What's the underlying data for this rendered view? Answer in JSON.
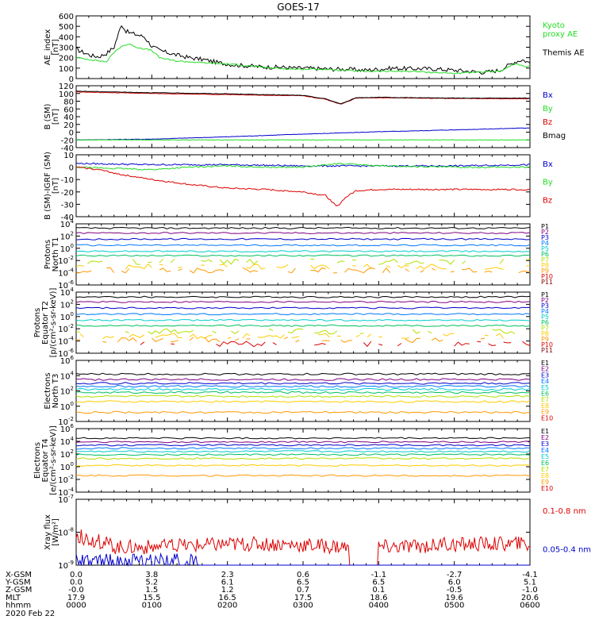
{
  "title": "GOES-17",
  "date": "2020 Feb 22",
  "colors": {
    "black": "#000000",
    "green": "#22dd22",
    "blue": "#0000cc",
    "red": "#dd0000",
    "darkred": "#800000",
    "cyan": "#00cccc",
    "yellow": "#e8c000",
    "orange": "#ff9900"
  },
  "chart_data": [
    {
      "id": "ae",
      "type": "line",
      "ylabel": [
        "AE_index",
        "[nT]"
      ],
      "ylim": [
        0,
        600
      ],
      "yticks": [
        0,
        100,
        200,
        300,
        400,
        500,
        600
      ],
      "xlim": [
        0,
        6
      ],
      "series": [
        {
          "name": "Themis AE",
          "color": "#000000",
          "x": [
            0,
            0.1,
            0.2,
            0.3,
            0.4,
            0.5,
            0.6,
            0.65,
            0.7,
            0.8,
            0.9,
            1.0,
            1.1,
            1.3,
            1.5,
            1.7,
            1.9,
            2.1,
            2.3,
            2.5,
            2.7,
            2.9,
            3.0,
            3.2,
            3.4,
            3.6,
            3.8,
            4.0,
            4.2,
            4.4,
            4.6,
            4.8,
            5.0,
            5.2,
            5.4,
            5.6,
            5.8,
            5.9,
            6.0
          ],
          "y": [
            280,
            250,
            220,
            210,
            240,
            300,
            520,
            460,
            440,
            420,
            400,
            310,
            270,
            230,
            200,
            180,
            150,
            130,
            120,
            110,
            110,
            100,
            100,
            95,
            90,
            90,
            80,
            90,
            100,
            95,
            95,
            90,
            80,
            70,
            60,
            80,
            160,
            180,
            150
          ]
        },
        {
          "name": "Kyoto proxy AE",
          "color": "#22dd22",
          "x": [
            0,
            0.2,
            0.4,
            0.5,
            0.6,
            0.7,
            0.8,
            1.0,
            1.1,
            1.3,
            1.5,
            1.7,
            2.0,
            2.3,
            2.6,
            2.9,
            3.2,
            3.5,
            3.8,
            4.1,
            4.4,
            4.7,
            5.0,
            5.3,
            5.6,
            5.8,
            6.0
          ],
          "y": [
            200,
            180,
            160,
            250,
            310,
            330,
            300,
            270,
            200,
            170,
            160,
            150,
            140,
            120,
            100,
            90,
            90,
            80,
            70,
            70,
            70,
            60,
            50,
            60,
            70,
            140,
            110
          ]
        }
      ],
      "legend": [
        "Kyoto proxy AE",
        "Themis AE"
      ]
    },
    {
      "id": "bsm",
      "type": "line",
      "ylabel": [
        "B (SM)",
        "[nT]"
      ],
      "ylim": [
        -40,
        120
      ],
      "yticks": [
        -40,
        -20,
        0,
        20,
        40,
        60,
        80,
        100,
        120
      ],
      "xlim": [
        0,
        6
      ],
      "series": [
        {
          "name": "Bx",
          "color": "#0000cc",
          "x": [
            0,
            1,
            2,
            3,
            4,
            5,
            6
          ],
          "y": [
            -20,
            -18,
            -12,
            -5,
            1,
            6,
            11
          ]
        },
        {
          "name": "By",
          "color": "#22dd22",
          "x": [
            0,
            1,
            2,
            3,
            4,
            5,
            6
          ],
          "y": [
            -20,
            -20,
            -20,
            -20,
            -20,
            -20,
            -20
          ]
        },
        {
          "name": "Bz",
          "color": "#dd0000",
          "x": [
            0,
            1,
            2,
            3,
            3.3,
            3.5,
            3.7,
            4,
            5,
            6
          ],
          "y": [
            104,
            100,
            97,
            94,
            85,
            72,
            88,
            89,
            87,
            86
          ]
        },
        {
          "name": "Bmag",
          "color": "#000000",
          "x": [
            0,
            1,
            2,
            3,
            3.3,
            3.5,
            3.7,
            4,
            5,
            6
          ],
          "y": [
            106,
            102,
            99,
            95,
            86,
            73,
            89,
            90,
            88,
            88
          ]
        }
      ],
      "legend": [
        "Bx",
        "By",
        "Bz",
        "Bmag"
      ]
    },
    {
      "id": "bigrf",
      "type": "line",
      "ylabel": [
        "B (SM)-IGRF (SM)",
        "[nT]"
      ],
      "ylim": [
        -40,
        10
      ],
      "yticks": [
        -40,
        -30,
        -20,
        -10,
        0,
        10
      ],
      "xlim": [
        0,
        6
      ],
      "series": [
        {
          "name": "Bx",
          "color": "#0000cc",
          "x": [
            0,
            1,
            2,
            3,
            4,
            5,
            6
          ],
          "y": [
            3,
            2,
            2,
            1,
            1,
            1,
            2
          ]
        },
        {
          "name": "By",
          "color": "#22dd22",
          "x": [
            0,
            0.5,
            1,
            1.5,
            2,
            2.5,
            3,
            3.5,
            4,
            5,
            6
          ],
          "y": [
            0,
            -1,
            -2,
            0,
            1,
            0,
            0,
            3,
            1,
            0,
            0
          ]
        },
        {
          "name": "Bz",
          "color": "#dd0000",
          "x": [
            0,
            0.3,
            0.6,
            1,
            1.5,
            2,
            2.5,
            3,
            3.3,
            3.45,
            3.55,
            3.7,
            4,
            4.5,
            5,
            5.5,
            6
          ],
          "y": [
            0,
            -2,
            -6,
            -10,
            -14,
            -17,
            -18,
            -20,
            -23,
            -32,
            -25,
            -19,
            -18,
            -18,
            -18,
            -18,
            -18
          ]
        }
      ],
      "legend": [
        "Bx",
        "By",
        "Bz"
      ]
    },
    {
      "id": "pn",
      "type": "line",
      "scale": "log",
      "ylabel": [
        "Protons",
        "North T1"
      ],
      "ylim_exp": [
        -6,
        4
      ],
      "yticks_exp": [
        -6,
        -4,
        -2,
        0,
        2,
        4
      ],
      "xlim": [
        0,
        6
      ],
      "channels": [
        "P1",
        "P2",
        "P3",
        "P4",
        "P5",
        "P6",
        "P7",
        "P8",
        "P9",
        "P10",
        "P11"
      ],
      "levels_exp": [
        3.3,
        2.5,
        1.5,
        0.5,
        -0.5,
        -1.2,
        -2.2,
        -3.0,
        -3.6,
        null,
        null
      ]
    },
    {
      "id": "pe",
      "type": "line",
      "scale": "log",
      "ylabel": [
        "Protons",
        "Equator T2",
        "[p/(cm²-s-sr-keV)]"
      ],
      "ylim_exp": [
        -6,
        4
      ],
      "yticks_exp": [
        -6,
        -4,
        -2,
        0,
        2,
        4
      ],
      "xlim": [
        0,
        6
      ],
      "channels": [
        "P1",
        "P2",
        "P3",
        "P4",
        "P5",
        "P6",
        "P7",
        "P8",
        "P9",
        "P10",
        "P11"
      ],
      "levels_exp": [
        3.2,
        2.4,
        1.4,
        0.4,
        -0.6,
        -1.5,
        -2.4,
        -3.2,
        -3.8,
        -4.5,
        null
      ]
    },
    {
      "id": "en",
      "type": "line",
      "scale": "log",
      "ylabel": [
        "Electrons",
        "North T3"
      ],
      "ylim_exp": [
        -2,
        6
      ],
      "yticks_exp": [
        -2,
        0,
        2,
        4,
        6
      ],
      "xlim": [
        0,
        6
      ],
      "channels": [
        "E1",
        "E2",
        "E3",
        "E4",
        "E5",
        "E6",
        "E7",
        "E8",
        "E9",
        "E10"
      ],
      "levels_exp": [
        4.2,
        3.5,
        3.0,
        2.6,
        2.2,
        1.8,
        1.3,
        0.6,
        -0.8,
        null
      ]
    },
    {
      "id": "ee",
      "type": "line",
      "scale": "log",
      "ylabel": [
        "Electrons",
        "Equator T4",
        "[e/(cm²-s-sr-keV)]"
      ],
      "ylim_exp": [
        -4,
        6
      ],
      "yticks_exp": [
        -4,
        -2,
        0,
        2,
        4,
        6
      ],
      "xlim": [
        0,
        6
      ],
      "channels": [
        "E1",
        "E2",
        "E3",
        "E4",
        "E5",
        "E6",
        "E7",
        "E8",
        "E9",
        "E10"
      ],
      "levels_exp": [
        4.5,
        3.9,
        3.4,
        2.9,
        2.4,
        1.9,
        1.3,
        0.2,
        -1.4,
        null
      ]
    },
    {
      "id": "xray",
      "type": "line",
      "scale": "log",
      "ylabel": [
        "Xray flux",
        "[W/m²]"
      ],
      "ylim_exp": [
        -9,
        -7
      ],
      "yticks_exp": [
        -9,
        -8,
        -7
      ],
      "xlim": [
        0,
        6
      ],
      "series": [
        {
          "name": "0.1-0.8 nm",
          "color": "#dd0000",
          "base_exp": -8.45
        },
        {
          "name": "0.05-0.4 nm",
          "color": "#0000cc",
          "base_exp": -8.95
        }
      ],
      "legend": [
        "0.1-0.8 nm",
        "0.05-0.4 nm"
      ]
    }
  ],
  "ephemeris": {
    "rows": [
      {
        "label": "X-GSM",
        "values": [
          "0.0",
          "3.8",
          "2.3",
          "0.6",
          "-1.1",
          "-2.7",
          "-4.1"
        ]
      },
      {
        "label": "Y-GSM",
        "values": [
          "0.0",
          "5.2",
          "6.1",
          "6.5",
          "6.5",
          "6.0",
          "5.1"
        ]
      },
      {
        "label": "Z-GSM",
        "values": [
          "-0.0",
          "1.5",
          "1.2",
          "0.7",
          "0.1",
          "-0.5",
          "-1.0"
        ]
      },
      {
        "label": "MLT",
        "values": [
          "17.9",
          "15.5",
          "16.5",
          "17.5",
          "18.6",
          "19.6",
          "20.6"
        ]
      },
      {
        "label": "hhmm",
        "values": [
          "0000",
          "0100",
          "0200",
          "0300",
          "0400",
          "0500",
          "0600"
        ]
      }
    ]
  }
}
